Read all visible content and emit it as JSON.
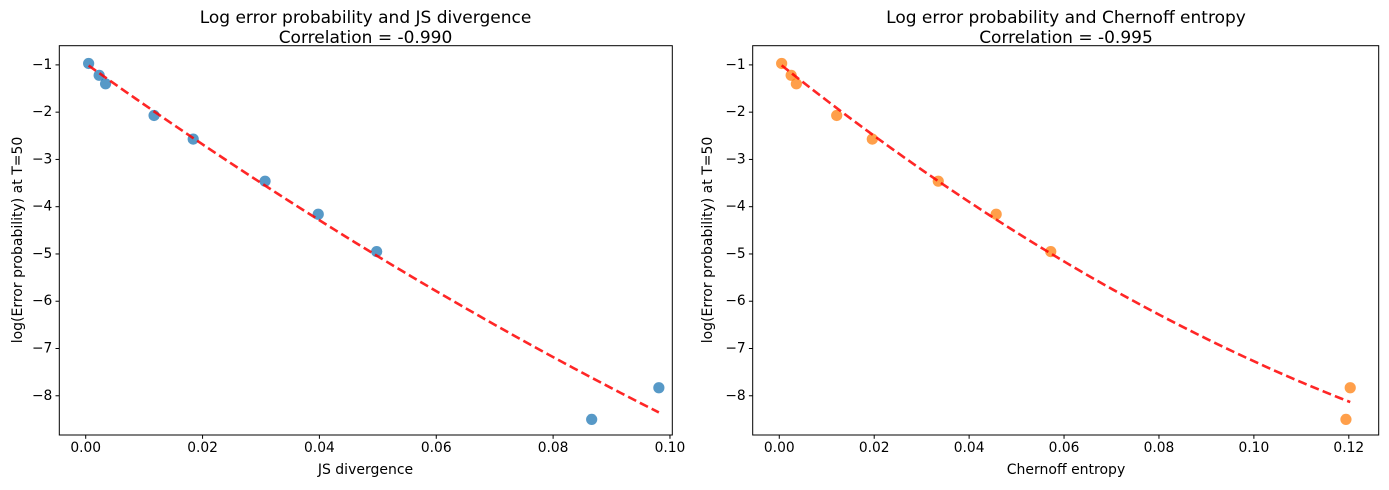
{
  "figure": {
    "background": "#ffffff",
    "text_color": "#000000"
  },
  "chart_data": [
    {
      "type": "scatter",
      "title": "Log error probability and JS divergence",
      "subtitle": "Correlation = -0.990",
      "correlation": -0.99,
      "xlabel": "JS divergence",
      "ylabel": "log(Error probability) at T=50",
      "xlim": [
        -0.00452,
        0.1004
      ],
      "ylim": [
        -8.83,
        -0.594
      ],
      "xticks": {
        "values": [
          0.0,
          0.02,
          0.04,
          0.06,
          0.08,
          0.1
        ],
        "labels": [
          "0.00",
          "0.02",
          "0.04",
          "0.06",
          "0.08",
          "0.10"
        ]
      },
      "yticks": {
        "values": [
          -1,
          -2,
          -3,
          -4,
          -5,
          -6,
          -7,
          -8
        ],
        "labels": [
          "−1",
          "−2",
          "−3",
          "−4",
          "−5",
          "−6",
          "−7",
          "−8"
        ]
      },
      "grid": false,
      "legend": null,
      "marker_color": "#1f77b4",
      "marker_opacity": 0.75,
      "points": {
        "x": [
          0.0005,
          0.0023,
          0.0034,
          0.0117,
          0.0184,
          0.0307,
          0.0398,
          0.0498,
          0.0866,
          0.0981
        ],
        "y": [
          -0.97,
          -1.22,
          -1.4,
          -2.07,
          -2.57,
          -3.46,
          -4.16,
          -4.95,
          -8.5,
          -7.83
        ]
      },
      "trendline": {
        "style": "dashed",
        "color": "#ff0000",
        "opacity": 0.85,
        "poly_coeffs": [
          -0.97,
          -88.2,
          132.0
        ],
        "x_range": [
          0.0005,
          0.0981
        ]
      }
    },
    {
      "type": "scatter",
      "title": "Log error probability and Chernoff entropy",
      "subtitle": "Correlation = -0.995",
      "correlation": -0.995,
      "xlabel": "Chernoff entropy",
      "ylabel": "log(Error probability) at T=50",
      "xlim": [
        -0.0056,
        0.1263
      ],
      "ylim": [
        -8.83,
        -0.594
      ],
      "xticks": {
        "values": [
          0.0,
          0.02,
          0.04,
          0.06,
          0.08,
          0.1,
          0.12
        ],
        "labels": [
          "0.00",
          "0.02",
          "0.04",
          "0.06",
          "0.08",
          "0.10",
          "0.12"
        ]
      },
      "yticks": {
        "values": [
          -1,
          -2,
          -3,
          -4,
          -5,
          -6,
          -7,
          -8
        ],
        "labels": [
          "−1",
          "−2",
          "−3",
          "−4",
          "−5",
          "−6",
          "−7",
          "−8"
        ]
      },
      "grid": false,
      "legend": null,
      "marker_color": "#ff7f0e",
      "marker_opacity": 0.75,
      "points": {
        "x": [
          0.0005,
          0.0025,
          0.0036,
          0.0121,
          0.0196,
          0.0335,
          0.0457,
          0.0572,
          0.1194,
          0.1203
        ],
        "y": [
          -0.97,
          -1.22,
          -1.4,
          -2.07,
          -2.57,
          -3.46,
          -4.16,
          -4.95,
          -8.5,
          -7.83
        ]
      },
      "trendline": {
        "style": "dashed",
        "color": "#ff0000",
        "opacity": 0.85,
        "poly_coeffs": [
          -0.97,
          -80.0,
          170.0
        ],
        "x_range": [
          0.0005,
          0.1203
        ]
      }
    }
  ]
}
